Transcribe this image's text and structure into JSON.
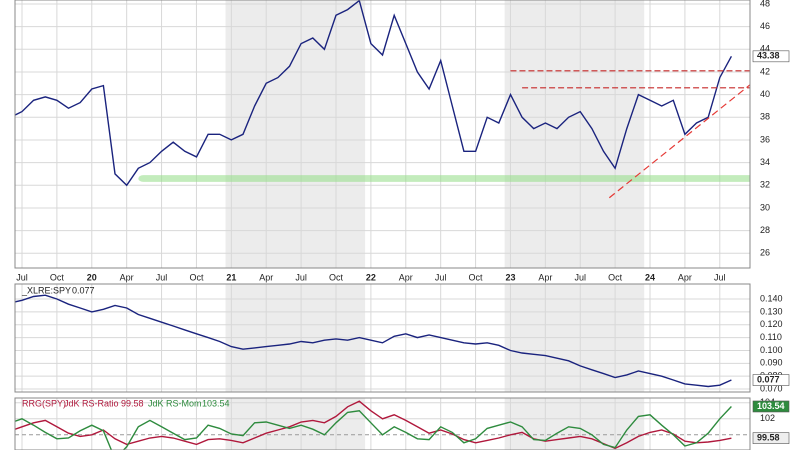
{
  "chart_data": [
    {
      "type": "line",
      "color": "#1a237e",
      "categories": [
        null,
        "Jul",
        null,
        null,
        "Oct",
        null,
        null,
        "20",
        null,
        null,
        "Apr",
        null,
        null,
        "Jul",
        null,
        null,
        "Oct",
        null,
        null,
        "21",
        null,
        null,
        "Apr",
        null,
        null,
        "Jul",
        null,
        null,
        "Oct",
        null,
        null,
        "22",
        null,
        null,
        "Apr",
        null,
        null,
        "Jul",
        null,
        null,
        "Oct",
        null,
        null,
        "23",
        null,
        null,
        "Apr",
        null,
        null,
        "Jul",
        null,
        null,
        "Oct",
        null,
        null,
        "24",
        null,
        null,
        "Apr",
        null,
        null,
        "Jul",
        null
      ],
      "values": [
        38,
        38.5,
        39.5,
        39.8,
        39.5,
        38.8,
        39.3,
        40.5,
        40.8,
        33,
        32,
        33.5,
        34,
        35,
        35.8,
        35,
        34.5,
        36.5,
        36.5,
        36,
        36.5,
        39,
        41,
        41.5,
        42.5,
        44.5,
        45,
        44,
        47,
        47.5,
        48.3,
        44.5,
        43.5,
        47,
        44.5,
        42,
        40.5,
        43,
        39,
        35,
        35,
        38,
        37.5,
        40,
        38,
        37,
        37.5,
        37,
        38,
        38.5,
        37,
        35,
        33.5,
        37,
        40,
        39.5,
        39,
        39.5,
        36.5,
        37.5,
        38,
        41.5,
        43.38
      ],
      "ylim": [
        24.7,
        48.35
      ],
      "yticks": [
        26,
        28,
        30,
        32,
        34,
        36,
        38,
        40,
        42,
        44,
        46,
        48
      ],
      "grid": true,
      "levels": [
        {
          "y": 42.1,
          "x_from": 43
        },
        {
          "y": 40.6,
          "x_from": 44
        }
      ],
      "trendline": {
        "x": [
          51.5,
          64
        ],
        "y": [
          30.9,
          41.2
        ]
      },
      "zone": {
        "y": [
          32.3,
          32.9
        ],
        "x": [
          11,
          64
        ]
      }
    },
    {
      "type": "line",
      "color": "#1a237e",
      "series": [
        {
          "name": "_XLRE:SPY",
          "color": "#1a237e",
          "values": [
            0.137,
            0.139,
            0.142,
            0.143,
            0.14,
            0.136,
            0.133,
            0.13,
            0.132,
            0.135,
            0.133,
            0.128,
            0.125,
            0.122,
            0.119,
            0.116,
            0.113,
            0.11,
            0.107,
            0.103,
            0.101,
            0.102,
            0.103,
            0.104,
            0.105,
            0.107,
            0.106,
            0.108,
            0.109,
            0.108,
            0.11,
            0.108,
            0.106,
            0.111,
            0.113,
            0.11,
            0.112,
            0.11,
            0.108,
            0.106,
            0.105,
            0.106,
            0.104,
            0.1,
            0.098,
            0.097,
            0.096,
            0.094,
            0.092,
            0.088,
            0.085,
            0.082,
            0.079,
            0.081,
            0.084,
            0.082,
            0.08,
            0.077,
            0.074,
            0.073,
            0.072,
            0.073,
            0.077
          ]
        }
      ],
      "ylim": [
        0.0677,
        0.1517
      ],
      "yticks": [
        {
          "value": 0.07,
          "label": "0.070"
        },
        {
          "value": 0.08,
          "label": "0.080"
        },
        {
          "value": 0.09,
          "label": "0.090"
        },
        {
          "value": 0.1,
          "label": "0.100"
        },
        {
          "value": 0.11,
          "label": "0.110"
        },
        {
          "value": 0.12,
          "label": "0.120"
        },
        {
          "value": 0.13,
          "label": "0.130"
        },
        {
          "value": 0.14,
          "label": "0.140"
        }
      ],
      "grid": true
    },
    {
      "type": "line",
      "title": "RRG(SPY)",
      "series": [
        {
          "name": "JdK RS-Ratio",
          "color": "#b0183c",
          "values": [
            100.5,
            101,
            101.5,
            101.8,
            101,
            100.2,
            99.8,
            100,
            100.6,
            99.5,
            98.8,
            99.2,
            99.6,
            99.8,
            99.6,
            99.2,
            98.8,
            99.4,
            99.5,
            99.3,
            99,
            99.6,
            100.2,
            100.6,
            101,
            101.6,
            101.8,
            101.5,
            102.3,
            103.5,
            104.2,
            103,
            102,
            102.5,
            101.8,
            101,
            100.2,
            100.6,
            100.1,
            99.4,
            99,
            99.3,
            99.6,
            100,
            100.3,
            99.5,
            99.2,
            99.4,
            99.6,
            99.8,
            99.5,
            98.9,
            98.3,
            99,
            99.8,
            100.3,
            100.6,
            100.1,
            99.2,
            99,
            99.1,
            99.3,
            99.58
          ]
        },
        {
          "name": "JdK RS-Mom",
          "color": "#2e8b3e",
          "values": [
            101.5,
            102,
            101.2,
            100.3,
            99.5,
            99.6,
            100.5,
            101.2,
            100.5,
            97,
            98.5,
            101,
            101.8,
            101,
            100.2,
            99.4,
            99.6,
            101.2,
            100.8,
            100.1,
            99.9,
            101.5,
            101.6,
            101.2,
            100.8,
            101.2,
            100.7,
            100,
            101.5,
            102.8,
            103,
            101.5,
            100,
            101,
            100.3,
            99.5,
            99.4,
            101,
            100.3,
            99,
            99.5,
            100.8,
            101.2,
            101.6,
            101,
            99.4,
            99.3,
            100.2,
            101,
            100.8,
            100,
            98.8,
            98.4,
            100.6,
            102.3,
            102.5,
            101.2,
            100,
            98.6,
            99,
            100.2,
            102,
            103.54
          ]
        }
      ],
      "ylim": [
        98.1,
        104.6
      ],
      "yticks": [
        102,
        104
      ],
      "baseline": 100,
      "grid": true
    }
  ]
}
